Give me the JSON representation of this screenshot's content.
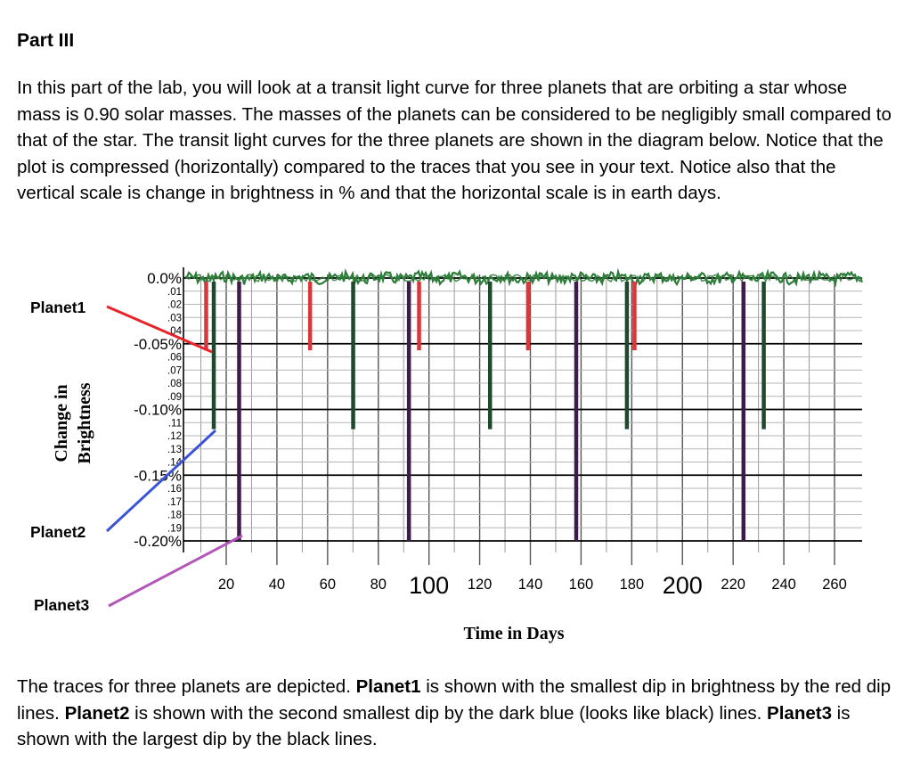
{
  "heading": "Part III",
  "intro": "In this part of the lab, you will look at a transit light curve for three planets that are orbiting a star whose mass is 0.90 solar masses.  The masses of the planets can be considered to be negligibly small compared to that of the star.  The transit light curves for the three planets are shown in the diagram below.  Notice that the plot is compressed (horizontally) compared to the traces that you see in your text.  Notice also that the vertical scale is change in brightness in % and that the horizontal scale is in earth days.",
  "outro": {
    "p1": "The traces for three planets are depicted.  ",
    "planet1": "Planet1",
    "p2": " is shown with the smallest dip in brightness by the red dip lines.  ",
    "planet2": "Planet2",
    "p3": " is shown with the second smallest dip by the dark blue (looks like black) lines.  ",
    "planet3": "Planet3",
    "p4": " is shown with the largest dip by the black lines."
  },
  "chart_data": {
    "type": "line",
    "xlabel": "Time in Days",
    "ylabel": [
      "Change in",
      "Brightness"
    ],
    "xlim": [
      0,
      270
    ],
    "ylim": [
      -0.21,
      0.005
    ],
    "x_ticks": [
      {
        "v": 20,
        "label": "20",
        "big": false
      },
      {
        "v": 40,
        "label": "40",
        "big": false
      },
      {
        "v": 60,
        "label": "60",
        "big": false
      },
      {
        "v": 80,
        "label": "80",
        "big": false
      },
      {
        "v": 100,
        "label": "100",
        "big": true
      },
      {
        "v": 120,
        "label": "120",
        "big": false
      },
      {
        "v": 140,
        "label": "140",
        "big": false
      },
      {
        "v": 160,
        "label": "160",
        "big": false
      },
      {
        "v": 180,
        "label": "180",
        "big": false
      },
      {
        "v": 200,
        "label": "200",
        "big": true
      },
      {
        "v": 220,
        "label": "220",
        "big": false
      },
      {
        "v": 240,
        "label": "240",
        "big": false
      },
      {
        "v": 260,
        "label": "260",
        "big": false
      }
    ],
    "y_major_ticks": [
      {
        "v": 0,
        "label": "0.0%"
      },
      {
        "v": -0.05,
        "label": "-0.05%"
      },
      {
        "v": -0.1,
        "label": "-0.10%"
      },
      {
        "v": -0.15,
        "label": "-0.15%"
      },
      {
        "v": -0.2,
        "label": "-0.20%"
      }
    ],
    "y_minor_ticks": [
      {
        "v": -0.01,
        "label": ".01"
      },
      {
        "v": -0.02,
        "label": ".02"
      },
      {
        "v": -0.03,
        "label": ".03"
      },
      {
        "v": -0.04,
        "label": ".04"
      },
      {
        "v": -0.06,
        "label": ".06"
      },
      {
        "v": -0.07,
        "label": ".07"
      },
      {
        "v": -0.08,
        "label": ".08"
      },
      {
        "v": -0.09,
        "label": ".09"
      },
      {
        "v": -0.11,
        "label": ".11"
      },
      {
        "v": -0.12,
        "label": ".12"
      },
      {
        "v": -0.13,
        "label": ".13"
      },
      {
        "v": -0.14,
        "label": ".14"
      },
      {
        "v": -0.16,
        "label": ".16"
      },
      {
        "v": -0.17,
        "label": ".17"
      },
      {
        "v": -0.18,
        "label": ".18"
      },
      {
        "v": -0.19,
        "label": ".19"
      }
    ],
    "baseline": 0,
    "series": [
      {
        "name": "Planet1",
        "color": "#d8383a",
        "depth": -0.055,
        "transit_days": [
          12,
          53,
          96,
          139,
          181,
          224
        ]
      },
      {
        "name": "Planet2",
        "color": "#1d4a2c",
        "depth": -0.115,
        "transit_days": [
          15,
          70,
          124,
          178,
          232
        ]
      },
      {
        "name": "Planet3",
        "color": "#3d1c4a",
        "depth": -0.2,
        "transit_days": [
          25,
          92,
          158,
          224
        ]
      }
    ],
    "noise_color": "#2e7d3a",
    "callouts": [
      {
        "label": "Planet1",
        "color": "#e8242a"
      },
      {
        "label": "Planet2",
        "color": "#3b53d6"
      },
      {
        "label": "Planet3",
        "color": "#b257b8"
      }
    ]
  }
}
